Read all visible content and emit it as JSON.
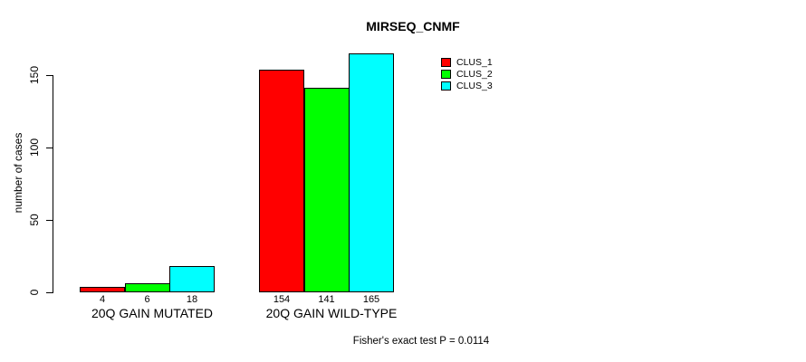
{
  "chart_data": {
    "type": "bar",
    "title": "MIRSEQ_CNMF",
    "ylabel": "number of cases",
    "categories": [
      "20Q GAIN MUTATED",
      "20Q GAIN WILD-TYPE"
    ],
    "series": [
      {
        "name": "CLUS_1",
        "color": "#FF0000",
        "values": [
          4,
          154
        ]
      },
      {
        "name": "CLUS_2",
        "color": "#00FF00",
        "values": [
          6,
          141
        ]
      },
      {
        "name": "CLUS_3",
        "color": "#00FFFF",
        "values": [
          18,
          165
        ]
      }
    ],
    "yticks": [
      0,
      50,
      100,
      150
    ],
    "ylim": [
      0,
      165
    ],
    "grid": false,
    "legend_position": "top-right",
    "bar_borders": "#000000",
    "axis_color": "#000000",
    "background_color": "#FFFFFF",
    "annotation": "Fisher's exact test P = 0.0114"
  }
}
